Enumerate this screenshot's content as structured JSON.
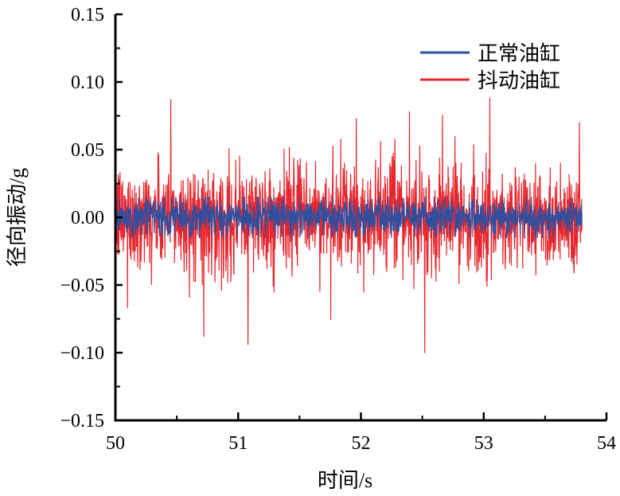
{
  "chart_data": {
    "type": "line",
    "title": "",
    "xlabel": "时间/s",
    "ylabel": "径向振动/g",
    "xlim": [
      50,
      54
    ],
    "ylim": [
      -0.15,
      0.15
    ],
    "x_ticks": [
      "50",
      "51",
      "52",
      "53",
      "54"
    ],
    "y_ticks": [
      "−0.15",
      "−0.10",
      "−0.05",
      "0.00",
      "0.05",
      "0.10",
      "0.15"
    ],
    "x_ticks_values": [
      50,
      51,
      52,
      53,
      54
    ],
    "y_ticks_values": [
      -0.15,
      -0.1,
      -0.05,
      0.0,
      0.05,
      0.1,
      0.15
    ],
    "x_data_range": [
      50,
      53.8
    ],
    "grid": false,
    "legend_position": "top-right",
    "series": [
      {
        "name": "抖动油缸",
        "color": "#e8262d",
        "typical_amplitude": 0.035,
        "peak_min": -0.1,
        "peak_max": 0.088,
        "notable_peaks": [
          {
            "x": 50.45,
            "y": 0.087
          },
          {
            "x": 51.08,
            "y": -0.094
          },
          {
            "x": 52.52,
            "y": -0.1
          },
          {
            "x": 53.05,
            "y": 0.088
          },
          {
            "x": 50.72,
            "y": -0.088
          },
          {
            "x": 53.78,
            "y": 0.07
          }
        ]
      },
      {
        "name": "正常油缸",
        "color": "#2e4fa0",
        "typical_amplitude": 0.012,
        "peak_min": -0.015,
        "peak_max": 0.015,
        "notable_peaks": []
      }
    ]
  }
}
